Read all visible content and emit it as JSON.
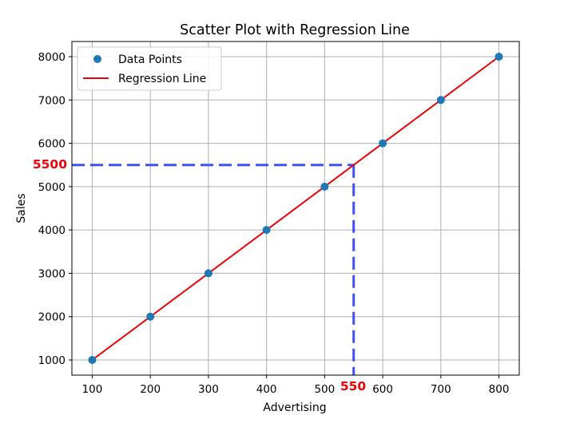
{
  "chart_data": {
    "type": "scatter",
    "title": "Scatter Plot with Regression Line",
    "xlabel": "Advertising",
    "ylabel": "Sales",
    "xlim": [
      65,
      835
    ],
    "ylim": [
      650,
      8350
    ],
    "x_ticks": [
      100,
      200,
      300,
      400,
      500,
      600,
      700,
      800
    ],
    "y_ticks": [
      1000,
      2000,
      3000,
      4000,
      5000,
      6000,
      7000,
      8000
    ],
    "grid": true,
    "legend_position": "top-left",
    "series": [
      {
        "name": "Data Points",
        "kind": "scatter",
        "color": "#1f77b4",
        "x": [
          100,
          200,
          300,
          400,
          500,
          600,
          700,
          800
        ],
        "y": [
          1000,
          2000,
          3000,
          4000,
          5000,
          6000,
          7000,
          8000
        ]
      },
      {
        "name": "Regression Line",
        "kind": "line",
        "color": "#e8000b",
        "x": [
          100,
          800
        ],
        "y": [
          1000,
          8000
        ]
      }
    ],
    "annotations": {
      "x_label": "550",
      "y_label": "5500",
      "x_value": 550,
      "y_value": 5500,
      "color": "#e8000b",
      "guide_color": "#3f51f5"
    }
  }
}
